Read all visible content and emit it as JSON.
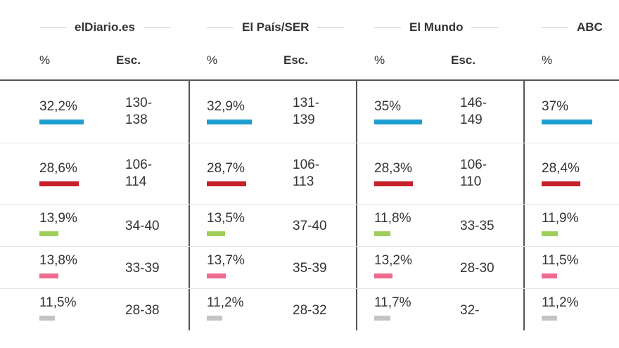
{
  "polls": [
    {
      "name": "elDiario.es",
      "pct_label": "%",
      "esc_label": "Esc.",
      "rows": [
        {
          "pct": "32,2%",
          "esc1": "130-",
          "esc2": "138"
        },
        {
          "pct": "28,6%",
          "esc1": "106-",
          "esc2": "114"
        },
        {
          "pct": "13,9%",
          "esc1": "34-40",
          "esc2": ""
        },
        {
          "pct": "13,8%",
          "esc1": "33-39",
          "esc2": ""
        },
        {
          "pct": "11,5%",
          "esc1": "28-38",
          "esc2": ""
        }
      ]
    },
    {
      "name": "El País/SER",
      "pct_label": "%",
      "esc_label": "Esc.",
      "rows": [
        {
          "pct": "32,9%",
          "esc1": "131-",
          "esc2": "139"
        },
        {
          "pct": "28,7%",
          "esc1": "106-",
          "esc2": "113"
        },
        {
          "pct": "13,5%",
          "esc1": "37-40",
          "esc2": ""
        },
        {
          "pct": "13,7%",
          "esc1": "35-39",
          "esc2": ""
        },
        {
          "pct": "11,2%",
          "esc1": "28-32",
          "esc2": ""
        }
      ]
    },
    {
      "name": "El Mundo",
      "pct_label": "%",
      "esc_label": "Esc.",
      "rows": [
        {
          "pct": "35%",
          "esc1": "146-",
          "esc2": "149"
        },
        {
          "pct": "28,3%",
          "esc1": "106-",
          "esc2": "110"
        },
        {
          "pct": "11,8%",
          "esc1": "33-35",
          "esc2": ""
        },
        {
          "pct": "13,2%",
          "esc1": "28-30",
          "esc2": ""
        },
        {
          "pct": "11,7%",
          "esc1": "32-",
          "esc2": ""
        }
      ]
    },
    {
      "name": "ABC",
      "pct_label": "%",
      "rows": [
        {
          "pct": "37%"
        },
        {
          "pct": "28,4%"
        },
        {
          "pct": "11,9%"
        },
        {
          "pct": "11,5%"
        },
        {
          "pct": "11,2%"
        }
      ]
    }
  ],
  "colors": [
    "#1e9fd0",
    "#c8202a",
    "#9fcf5a",
    "#ef6a8f",
    "#c4c4c4"
  ],
  "chart_data": {
    "type": "table",
    "title": "",
    "columns": [
      "elDiario.es %",
      "elDiario.es Esc.",
      "El País/SER %",
      "El País/SER Esc.",
      "El Mundo %",
      "El Mundo Esc.",
      "ABC %"
    ],
    "series": [
      {
        "name": "Row 1 (blue)",
        "values": [
          32.2,
          "130-138",
          32.9,
          "131-139",
          35.0,
          "146-149",
          37.0
        ]
      },
      {
        "name": "Row 2 (red)",
        "values": [
          28.6,
          "106-114",
          28.7,
          "106-113",
          28.3,
          "106-110",
          28.4
        ]
      },
      {
        "name": "Row 3 (green)",
        "values": [
          13.9,
          "34-40",
          13.5,
          "37-40",
          11.8,
          "33-35",
          11.9
        ]
      },
      {
        "name": "Row 4 (pink)",
        "values": [
          13.8,
          "33-39",
          13.7,
          "35-39",
          13.2,
          "28-30",
          11.5
        ]
      },
      {
        "name": "Row 5 (grey)",
        "values": [
          11.5,
          "28-38",
          11.2,
          "28-32",
          11.7,
          "32-",
          11.2
        ]
      }
    ]
  }
}
